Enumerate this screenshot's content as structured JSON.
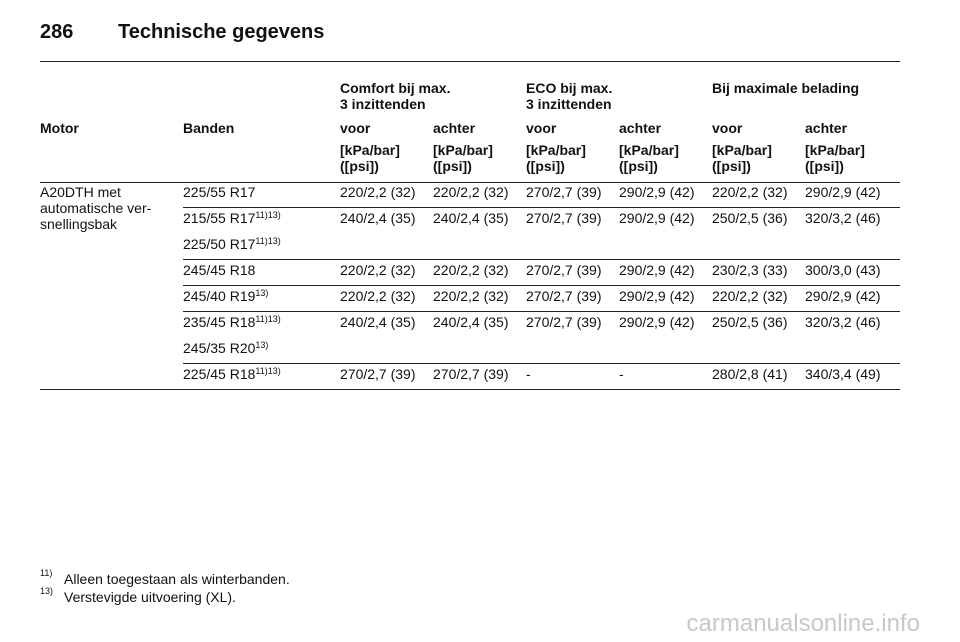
{
  "header": {
    "page": "286",
    "title": "Technische gegevens"
  },
  "table": {
    "group_headers": [
      [
        "Comfort bij max.",
        "3 inzittenden"
      ],
      [
        "ECO bij max.",
        "3 inzittenden"
      ],
      [
        "Bij maximale belading"
      ]
    ],
    "columns": [
      "Motor",
      "Banden",
      "voor",
      "achter",
      "voor",
      "achter",
      "voor",
      "achter"
    ],
    "units": [
      [
        "[kPa/bar]",
        "([psi])"
      ],
      [
        "[kPa/bar]",
        "([psi])"
      ],
      [
        "[kPa/bar]",
        "([psi])"
      ],
      [
        "[kPa/bar]",
        "([psi])"
      ],
      [
        "[kPa/bar]",
        "([psi])"
      ],
      [
        "[kPa/bar]",
        "([psi])"
      ]
    ],
    "motor": [
      "A20DTH met",
      "automatische ver-",
      "snellingsbak"
    ],
    "rows": [
      {
        "tires": [
          {
            "name": "225/55 R17"
          }
        ],
        "values": [
          "220/2,2 (32)",
          "220/2,2 (32)",
          "270/2,7 (39)",
          "290/2,9 (42)",
          "220/2,2 (32)",
          "290/2,9 (42)"
        ]
      },
      {
        "tires": [
          {
            "name": "215/55 R17",
            "note": "11)13)"
          },
          {
            "name": "225/50 R17",
            "note": "11)13)"
          }
        ],
        "values": [
          "240/2,4 (35)",
          "240/2,4 (35)",
          "270/2,7 (39)",
          "290/2,9 (42)",
          "250/2,5 (36)",
          "320/3,2 (46)"
        ]
      },
      {
        "tires": [
          {
            "name": "245/45 R18"
          }
        ],
        "values": [
          "220/2,2 (32)",
          "220/2,2 (32)",
          "270/2,7 (39)",
          "290/2,9 (42)",
          "230/2,3 (33)",
          "300/3,0 (43)"
        ]
      },
      {
        "tires": [
          {
            "name": "245/40 R19",
            "note": "13)"
          }
        ],
        "values": [
          "220/2,2 (32)",
          "220/2,2 (32)",
          "270/2,7 (39)",
          "290/2,9 (42)",
          "220/2,2 (32)",
          "290/2,9 (42)"
        ]
      },
      {
        "tires": [
          {
            "name": "235/45 R18",
            "note": "11)13)"
          },
          {
            "name": "245/35 R20",
            "note": "13)"
          }
        ],
        "values": [
          "240/2,4 (35)",
          "240/2,4 (35)",
          "270/2,7 (39)",
          "290/2,9 (42)",
          "250/2,5 (36)",
          "320/3,2 (46)"
        ]
      },
      {
        "tires": [
          {
            "name": "225/45 R18",
            "note": "11)13)"
          }
        ],
        "values": [
          "270/2,7 (39)",
          "270/2,7 (39)",
          "-",
          "-",
          "280/2,8 (41)",
          "340/3,4 (49)"
        ]
      }
    ]
  },
  "footnotes": [
    {
      "mark": "11)",
      "text": "Alleen toegestaan als winterbanden."
    },
    {
      "mark": "13)",
      "text": "Verstevigde uitvoering (XL)."
    }
  ],
  "watermark": "carmanualsonline.info"
}
